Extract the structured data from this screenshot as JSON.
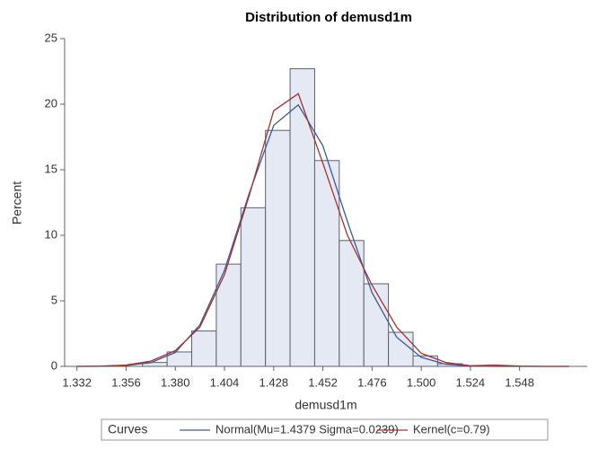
{
  "chart_data": {
    "type": "histogram",
    "title": "Distribution of demusd1m",
    "x_label": "demusd1m",
    "y_label": "Percent",
    "bins": [
      1.364,
      1.376,
      1.388,
      1.4,
      1.412,
      1.424,
      1.436,
      1.448,
      1.46,
      1.472,
      1.484,
      1.496,
      1.508,
      1.52
    ],
    "values": [
      0.3,
      1.1,
      2.7,
      7.8,
      12.1,
      18.0,
      22.7,
      15.7,
      9.6,
      6.3,
      2.6,
      0.8,
      0.2
    ],
    "color": "#e4e9f3",
    "edge_color": "#5d6070",
    "xlim": [
      1.326,
      1.581
    ],
    "xticks": [
      1.332,
      1.356,
      {
        "value": 1.38,
        "label": "1.380"
      },
      1.404,
      1.428,
      1.452,
      1.476,
      {
        "value": 1.5,
        "label": "1.500"
      },
      1.524,
      1.548
    ],
    "ylim": [
      0,
      25
    ],
    "yticks": [
      0,
      5,
      10,
      15,
      20,
      25
    ],
    "legend_title": "Curves",
    "curves": [
      {
        "name": "Normal(Mu=1.4379 Sigma=0.0239)",
        "color": "#3b5b9a",
        "x": [
          1.332,
          1.344,
          1.356,
          1.368,
          1.38,
          1.392,
          1.404,
          1.416,
          1.428,
          1.44,
          1.452,
          1.464,
          1.476,
          1.488,
          1.5,
          1.512,
          1.524,
          1.536,
          1.548,
          1.56,
          1.572
        ],
        "values": [
          0.001,
          0.01,
          0.06,
          0.28,
          1.06,
          3.17,
          7.33,
          13.17,
          18.38,
          19.95,
          16.83,
          11.04,
          5.62,
          2.23,
          0.69,
          0.16,
          0.03,
          0.0,
          0.0,
          0.0,
          0.0
        ]
      },
      {
        "name": "Kernel(c=0.79)",
        "color": "#a5322f",
        "x": [
          1.332,
          1.344,
          1.356,
          1.368,
          1.38,
          1.392,
          1.404,
          1.416,
          1.428,
          1.44,
          1.452,
          1.464,
          1.476,
          1.488,
          1.5,
          1.512,
          1.524,
          1.536,
          1.548,
          1.56,
          1.572
        ],
        "values": [
          0.0,
          0.02,
          0.1,
          0.4,
          1.2,
          3.0,
          7.0,
          13.0,
          19.5,
          20.8,
          15.5,
          10.0,
          6.2,
          3.0,
          1.0,
          0.3,
          0.05,
          0.1,
          0.02,
          0.0,
          0.0
        ]
      }
    ]
  }
}
